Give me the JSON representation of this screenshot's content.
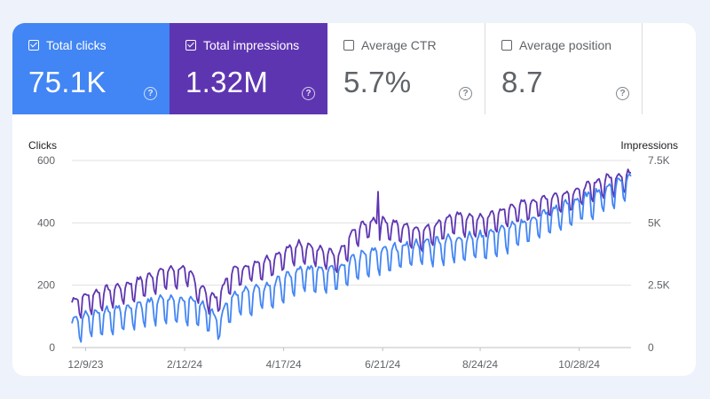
{
  "metrics": [
    {
      "label": "Total clicks",
      "value": "75.1K",
      "checked": true
    },
    {
      "label": "Total impressions",
      "value": "1.32M",
      "checked": true
    },
    {
      "label": "Average CTR",
      "value": "5.7%",
      "checked": false
    },
    {
      "label": "Average position",
      "value": "8.7",
      "checked": false
    }
  ],
  "help_glyph": "?",
  "colors": {
    "clicks": "#4285f4",
    "impressions": "#5e35b1",
    "background": "#eef2fb",
    "grid": "#e0e0e0",
    "axis_text": "#5f6368"
  },
  "chart_data": {
    "type": "line",
    "left_axis_title": "Clicks",
    "right_axis_title": "Impressions",
    "left_ticks": [
      "0",
      "200",
      "400",
      "600"
    ],
    "right_ticks": [
      "0",
      "2.5K",
      "5K",
      "7.5K"
    ],
    "left_range": [
      0,
      600
    ],
    "right_range": [
      0,
      7500
    ],
    "x_ticks": [
      "12/9/23",
      "2/12/24",
      "4/17/24",
      "6/21/24",
      "8/24/24",
      "10/28/24"
    ],
    "x_range": [
      "2023-11-30",
      "2024-12-01"
    ],
    "grid": true,
    "series": [
      {
        "name": "Total impressions",
        "axis": "right",
        "keyframes": [
          [
            0,
            1600
          ],
          [
            20,
            2000
          ],
          [
            40,
            2300
          ],
          [
            60,
            2800
          ],
          [
            75,
            2900
          ],
          [
            85,
            2100
          ],
          [
            95,
            1700
          ],
          [
            105,
            2800
          ],
          [
            130,
            3300
          ],
          [
            150,
            3900
          ],
          [
            175,
            3400
          ],
          [
            185,
            4400
          ],
          [
            195,
            4800
          ],
          [
            205,
            4800
          ],
          [
            230,
            4400
          ],
          [
            250,
            5000
          ],
          [
            270,
            4900
          ],
          [
            290,
            5400
          ],
          [
            310,
            5700
          ],
          [
            330,
            6000
          ],
          [
            350,
            6500
          ],
          [
            365,
            6700
          ]
        ],
        "spikes": [
          [
            201,
            6250
          ]
        ],
        "weekly_amplitude": 380
      },
      {
        "name": "Total clicks",
        "axis": "left",
        "keyframes": [
          [
            0,
            65
          ],
          [
            30,
            95
          ],
          [
            60,
            125
          ],
          [
            78,
            125
          ],
          [
            90,
            95
          ],
          [
            96,
            65
          ],
          [
            105,
            140
          ],
          [
            130,
            170
          ],
          [
            150,
            220
          ],
          [
            175,
            230
          ],
          [
            195,
            280
          ],
          [
            205,
            280
          ],
          [
            220,
            300
          ],
          [
            250,
            320
          ],
          [
            270,
            330
          ],
          [
            290,
            360
          ],
          [
            310,
            400
          ],
          [
            330,
            440
          ],
          [
            350,
            480
          ],
          [
            365,
            520
          ]
        ],
        "spikes": [],
        "weekly_amplitude": 38
      }
    ]
  }
}
